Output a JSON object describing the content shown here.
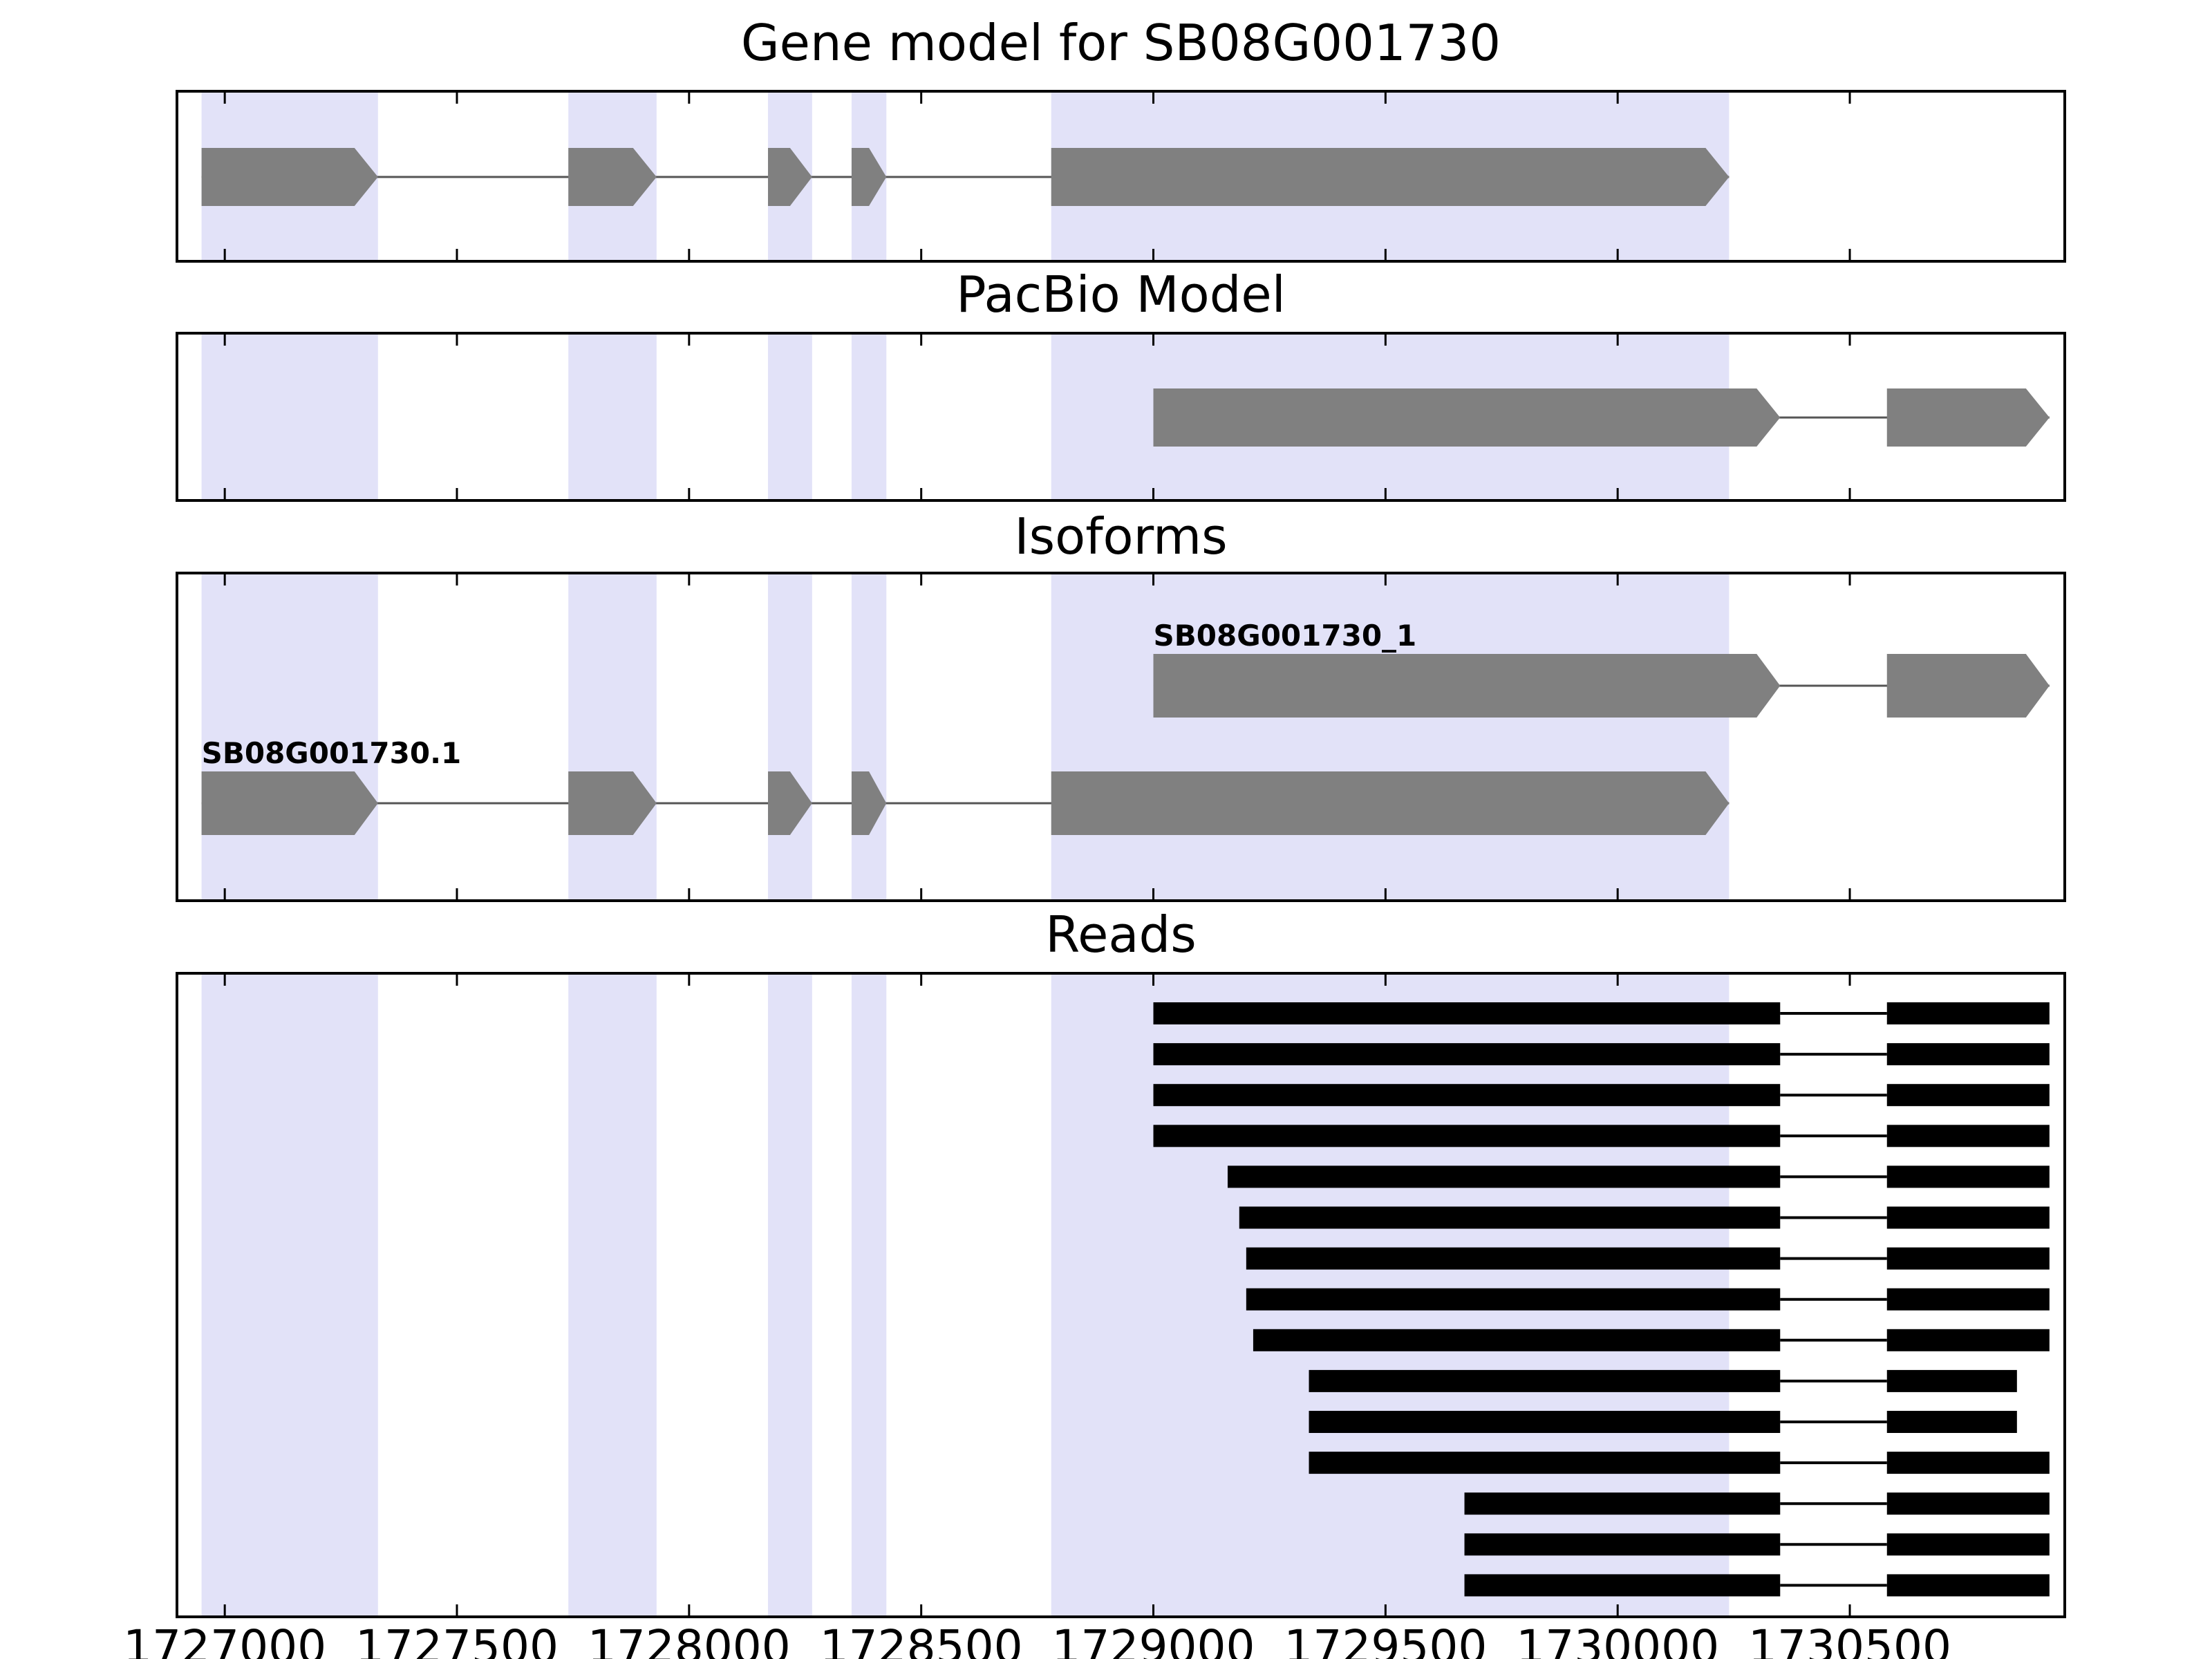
{
  "figure": {
    "background": "#ffffff"
  },
  "chart_data": {
    "type": "gene-model-browser",
    "title": "Gene model for SB08G001730",
    "xlim": [
      1726900,
      1730960
    ],
    "xticks": [
      1727000,
      1727500,
      1728000,
      1728500,
      1729000,
      1729500,
      1730000,
      1730500
    ],
    "xtick_labels": [
      "1727000",
      "1727500",
      "1728000",
      "1728500",
      "1729000",
      "1729500",
      "1730000",
      "1730500"
    ],
    "highlight_regions": [
      [
        1726950,
        1727330
      ],
      [
        1727740,
        1727930
      ],
      [
        1728170,
        1728265
      ],
      [
        1728350,
        1728425
      ],
      [
        1728780,
        1730240
      ]
    ],
    "colors": {
      "exon_fill": "#808080",
      "read_fill": "#000000",
      "highlight_fill": "#e2e2f8",
      "intron_line": "#555555",
      "axis": "#000000",
      "background": "#ffffff",
      "label_text": "#000000"
    },
    "panels": [
      {
        "name": "gene-model",
        "title": "Gene model for SB08G001730",
        "features": [
          {
            "strand": "+",
            "exons": [
              [
                1726950,
                1727330
              ],
              [
                1727740,
                1727930
              ],
              [
                1728170,
                1728265
              ],
              [
                1728350,
                1728425
              ],
              [
                1728780,
                1730240
              ]
            ]
          }
        ]
      },
      {
        "name": "pacbio-model",
        "title": "PacBio Model",
        "features": [
          {
            "strand": "+",
            "exons": [
              [
                1729000,
                1730350
              ],
              [
                1730580,
                1730930
              ]
            ]
          }
        ]
      },
      {
        "name": "isoforms",
        "title": "Isoforms",
        "features": [
          {
            "label": "SB08G001730_1",
            "strand": "+",
            "exons": [
              [
                1729000,
                1730350
              ],
              [
                1730580,
                1730930
              ]
            ]
          },
          {
            "label": "SB08G001730.1",
            "strand": "+",
            "exons": [
              [
                1726950,
                1727330
              ],
              [
                1727740,
                1727930
              ],
              [
                1728170,
                1728265
              ],
              [
                1728350,
                1728425
              ],
              [
                1728780,
                1730240
              ]
            ]
          }
        ]
      },
      {
        "name": "reads",
        "title": "Reads",
        "reads": [
          {
            "blocks": [
              [
                1729000,
                1730350
              ],
              [
                1730580,
                1730930
              ]
            ]
          },
          {
            "blocks": [
              [
                1729000,
                1730350
              ],
              [
                1730580,
                1730930
              ]
            ]
          },
          {
            "blocks": [
              [
                1729000,
                1730350
              ],
              [
                1730580,
                1730930
              ]
            ]
          },
          {
            "blocks": [
              [
                1729000,
                1730350
              ],
              [
                1730580,
                1730930
              ]
            ]
          },
          {
            "blocks": [
              [
                1729160,
                1730350
              ],
              [
                1730580,
                1730930
              ]
            ]
          },
          {
            "blocks": [
              [
                1729185,
                1730350
              ],
              [
                1730580,
                1730930
              ]
            ]
          },
          {
            "blocks": [
              [
                1729200,
                1730350
              ],
              [
                1730580,
                1730930
              ]
            ]
          },
          {
            "blocks": [
              [
                1729200,
                1730350
              ],
              [
                1730580,
                1730930
              ]
            ]
          },
          {
            "blocks": [
              [
                1729215,
                1730350
              ],
              [
                1730580,
                1730930
              ]
            ]
          },
          {
            "blocks": [
              [
                1729335,
                1730350
              ],
              [
                1730580,
                1730860
              ]
            ]
          },
          {
            "blocks": [
              [
                1729335,
                1730350
              ],
              [
                1730580,
                1730860
              ]
            ]
          },
          {
            "blocks": [
              [
                1729335,
                1730350
              ],
              [
                1730580,
                1730930
              ]
            ]
          },
          {
            "blocks": [
              [
                1729670,
                1730350
              ],
              [
                1730580,
                1730930
              ]
            ]
          },
          {
            "blocks": [
              [
                1729670,
                1730350
              ],
              [
                1730580,
                1730930
              ]
            ]
          },
          {
            "blocks": [
              [
                1729670,
                1730350
              ],
              [
                1730580,
                1730930
              ]
            ]
          }
        ]
      }
    ]
  }
}
